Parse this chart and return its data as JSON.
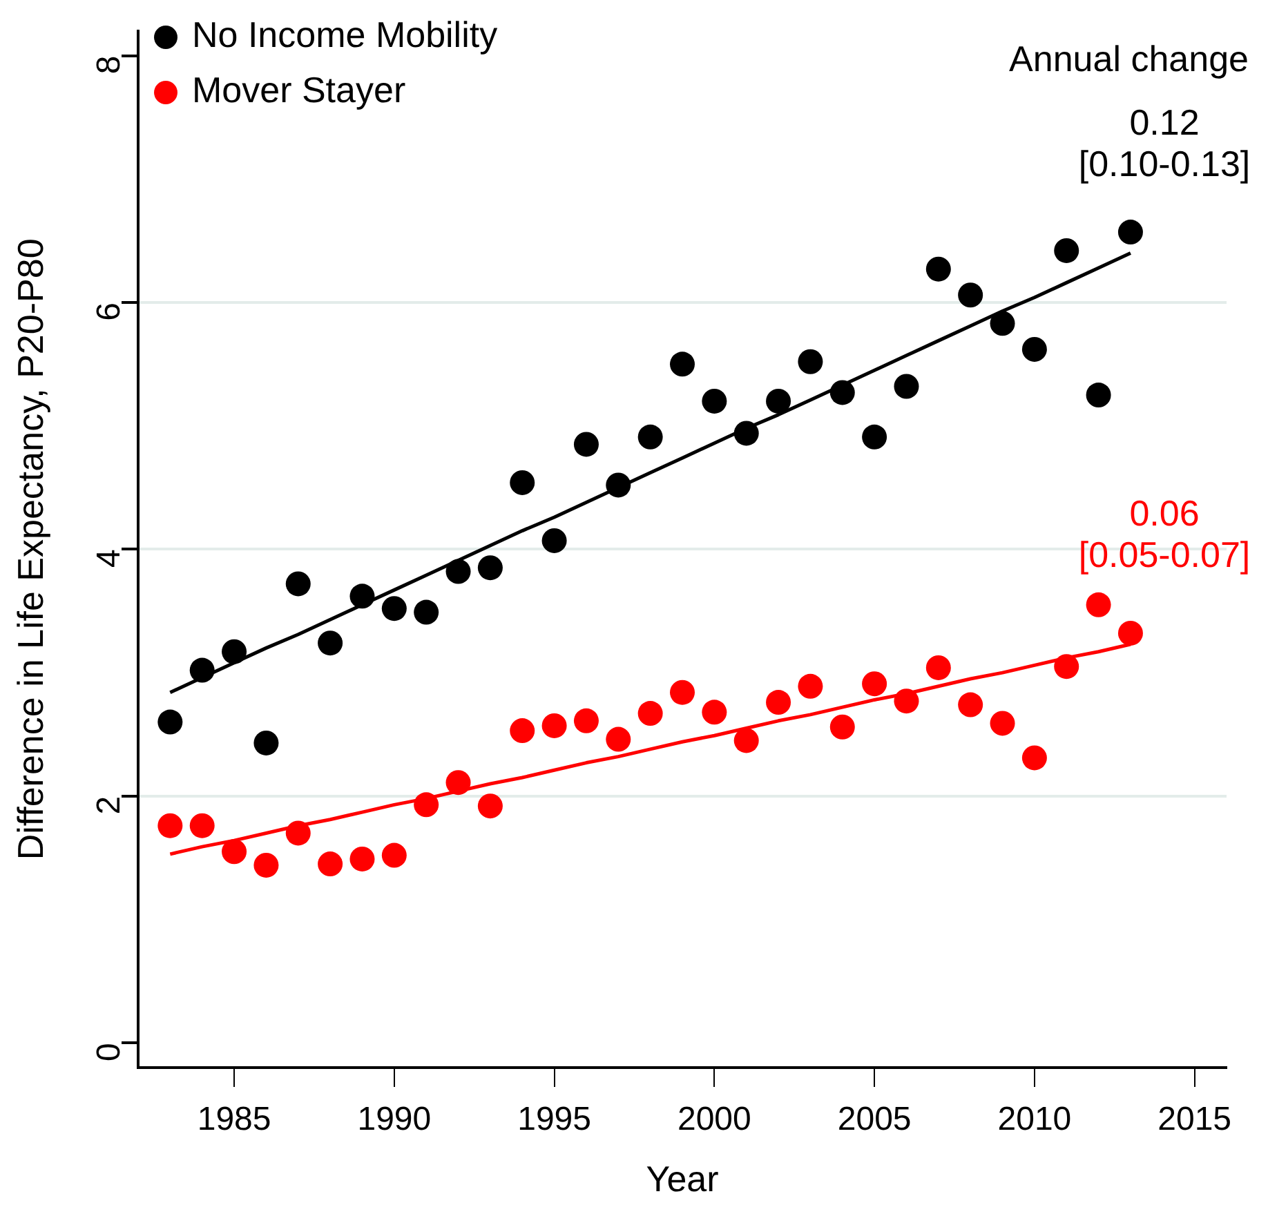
{
  "chart_data": {
    "type": "scatter",
    "xlabel": "Year",
    "ylabel": "Difference in Life Expectancy, P20-P80",
    "x": [
      1983,
      1984,
      1985,
      1986,
      1987,
      1988,
      1989,
      1990,
      1991,
      1992,
      1993,
      1994,
      1995,
      1996,
      1997,
      1998,
      1999,
      2000,
      2001,
      2002,
      2003,
      2004,
      2005,
      2006,
      2007,
      2008,
      2009,
      2010,
      2011,
      2012,
      2013
    ],
    "series": [
      {
        "name": "No Income Mobility",
        "color": "#000000",
        "marker": "circle",
        "values": [
          2.6,
          3.02,
          3.17,
          2.43,
          3.72,
          3.24,
          3.62,
          3.52,
          3.49,
          3.82,
          3.85,
          4.54,
          4.07,
          4.85,
          4.52,
          4.91,
          5.5,
          5.2,
          4.94,
          5.2,
          5.52,
          5.27,
          4.91,
          5.32,
          6.27,
          6.06,
          5.83,
          5.62,
          6.42,
          5.25,
          6.57
        ]
      },
      {
        "name": "Mover Stayer",
        "color": "#ff0000",
        "marker": "circle",
        "values": [
          1.76,
          1.76,
          1.55,
          1.44,
          1.7,
          1.45,
          1.49,
          1.52,
          1.93,
          2.11,
          1.92,
          2.53,
          2.57,
          2.61,
          2.46,
          2.67,
          2.84,
          2.68,
          2.45,
          2.76,
          2.89,
          2.56,
          2.91,
          2.77,
          3.04,
          2.74,
          2.59,
          2.31,
          3.05,
          3.55,
          3.32
        ]
      },
      {
        "type": "line",
        "color": "#000000",
        "marker": "none",
        "values": [
          2.84,
          2.96,
          3.08,
          3.2,
          3.31,
          3.43,
          3.55,
          3.67,
          3.79,
          3.91,
          4.03,
          4.15,
          4.26,
          4.38,
          4.5,
          4.62,
          4.74,
          4.86,
          4.98,
          5.09,
          5.21,
          5.33,
          5.45,
          5.57,
          5.69,
          5.81,
          5.93,
          6.04,
          6.16,
          6.28,
          6.4
        ]
      },
      {
        "type": "line",
        "color": "#ff0000",
        "marker": "none",
        "values": [
          1.53,
          1.59,
          1.64,
          1.7,
          1.76,
          1.81,
          1.87,
          1.93,
          1.98,
          2.04,
          2.1,
          2.15,
          2.21,
          2.27,
          2.32,
          2.38,
          2.44,
          2.49,
          2.55,
          2.61,
          2.66,
          2.72,
          2.78,
          2.83,
          2.89,
          2.95,
          3.0,
          3.06,
          3.12,
          3.17,
          3.23
        ]
      }
    ],
    "xlim": [
      1982,
      2016
    ],
    "xticks": [
      1985,
      1990,
      1995,
      2000,
      2005,
      2010,
      2015
    ],
    "ylim": [
      -0.2,
      8.2
    ],
    "yticks": [
      0,
      2,
      4,
      6,
      8
    ],
    "grid": "y",
    "legend": "top left",
    "line_style": "solid",
    "annotations": [
      "Annual change",
      "0.12\n[0.10-0.13]",
      "0.06\n[0.05-0.07]"
    ]
  }
}
